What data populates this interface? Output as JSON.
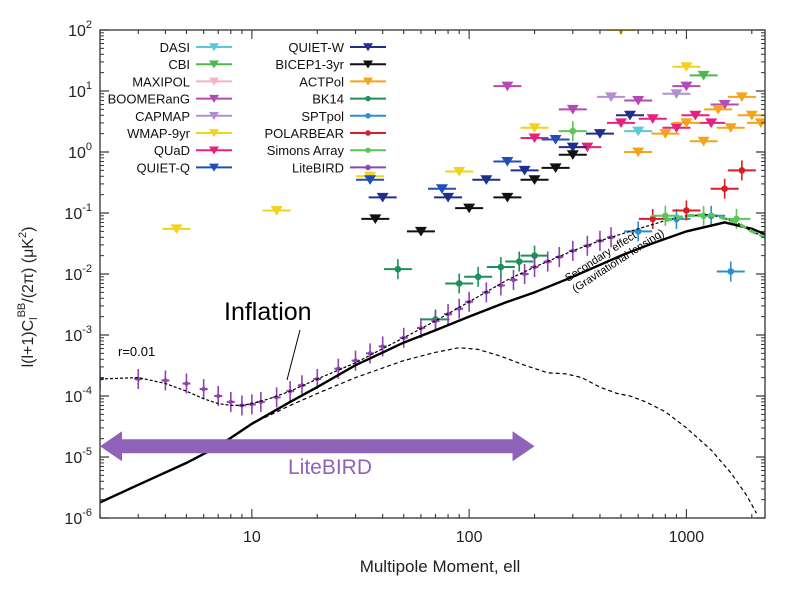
{
  "chart_data": {
    "type": "scatter",
    "xlabel": "Multipole Moment, ell",
    "ylabel_parts": {
      "a": "l(l+1)C",
      "sub": "l",
      "sup": "BB",
      "b": "/(2π) (μK",
      "sup2": "2",
      "c": ")"
    },
    "x_scale": "log",
    "y_scale": "log",
    "xlim": [
      2,
      2300
    ],
    "ylim": [
      1e-06,
      100
    ],
    "x_ticks": [
      {
        "value": 10,
        "label": "10"
      },
      {
        "value": 100,
        "label": "100"
      },
      {
        "value": 1000,
        "label": "1000"
      }
    ],
    "y_ticks": [
      {
        "value": 1e-06,
        "mant": "10",
        "exp": "-6"
      },
      {
        "value": 1e-05,
        "mant": "10",
        "exp": "-5"
      },
      {
        "value": 0.0001,
        "mant": "10",
        "exp": "-4"
      },
      {
        "value": 0.001,
        "mant": "10",
        "exp": "-3"
      },
      {
        "value": 0.01,
        "mant": "10",
        "exp": "-2"
      },
      {
        "value": 0.1,
        "mant": "10",
        "exp": "-1"
      },
      {
        "value": 1,
        "mant": "10",
        "exp": "0"
      },
      {
        "value": 10,
        "mant": "10",
        "exp": "1"
      },
      {
        "value": 100,
        "mant": "10",
        "exp": "2"
      }
    ],
    "annotations": {
      "inflation": "Inflation",
      "r_value": "r=0.01",
      "secondary_1": "Secondary effect",
      "secondary_2": "(Gravitational lensing)",
      "litebird_range": "LiteBIRD"
    },
    "range_arrow": {
      "from": 2,
      "to": 200,
      "y": 1.5e-05,
      "color": "#8e63b8"
    },
    "legend_position": "top-left",
    "legend": [
      {
        "name": "DASI",
        "color": "#5cc9d8",
        "marker": "triangle-down"
      },
      {
        "name": "CBI",
        "color": "#4db84d",
        "marker": "triangle-down"
      },
      {
        "name": "MAXIPOL",
        "color": "#f4b3c2",
        "marker": "triangle-down"
      },
      {
        "name": "BOOMERanG",
        "color": "#b54ab5",
        "marker": "triangle-down"
      },
      {
        "name": "CAPMAP",
        "color": "#b48fd0",
        "marker": "triangle-down"
      },
      {
        "name": "WMAP-9yr",
        "color": "#f2d21e",
        "marker": "triangle-down"
      },
      {
        "name": "QUaD",
        "color": "#e8217a",
        "marker": "triangle-down"
      },
      {
        "name": "QUIET-Q",
        "color": "#1f4fb8",
        "marker": "triangle-down"
      },
      {
        "name": "QUIET-W",
        "color": "#1f2f8f",
        "marker": "triangle-down"
      },
      {
        "name": "BICEP1-3yr",
        "color": "#111111",
        "marker": "triangle-down"
      },
      {
        "name": "ACTPol",
        "color": "#f5a31a",
        "marker": "triangle-down"
      },
      {
        "name": "BK14",
        "color": "#1e8f5a",
        "marker": "circle"
      },
      {
        "name": "SPTpol",
        "color": "#2b8fd1",
        "marker": "circle"
      },
      {
        "name": "POLARBEAR",
        "color": "#d61f26",
        "marker": "circle"
      },
      {
        "name": "Simons Array",
        "color": "#5fc45a",
        "marker": "circle"
      },
      {
        "name": "LiteBIRD",
        "color": "#8e44b0",
        "marker": "circle"
      }
    ],
    "curves": {
      "total": [
        [
          2,
          0.00019
        ],
        [
          3,
          0.0002
        ],
        [
          4,
          0.00016
        ],
        [
          5,
          0.00012
        ],
        [
          6,
          9e-05
        ],
        [
          7,
          7.5e-05
        ],
        [
          8,
          7e-05
        ],
        [
          9,
          7e-05
        ],
        [
          10,
          7.5e-05
        ],
        [
          12,
          9e-05
        ],
        [
          15,
          0.00012
        ],
        [
          20,
          0.00019
        ],
        [
          30,
          0.00035
        ],
        [
          50,
          0.0009
        ],
        [
          70,
          0.0017
        ],
        [
          100,
          0.0035
        ],
        [
          150,
          0.008
        ],
        [
          200,
          0.013
        ],
        [
          300,
          0.024
        ],
        [
          400,
          0.035
        ],
        [
          600,
          0.055
        ],
        [
          800,
          0.075
        ],
        [
          1000,
          0.09
        ],
        [
          1300,
          0.095
        ],
        [
          1700,
          0.07
        ],
        [
          2000,
          0.05
        ],
        [
          2300,
          0.04
        ]
      ],
      "inflation": [
        [
          2,
          1.8e-06
        ],
        [
          3,
          3.5e-06
        ],
        [
          5,
          8e-06
        ],
        [
          7,
          1.5e-05
        ],
        [
          10,
          3.5e-05
        ],
        [
          15,
          8e-05
        ],
        [
          20,
          0.00014
        ],
        [
          30,
          0.00032
        ],
        [
          50,
          0.00075
        ],
        [
          70,
          0.0012
        ],
        [
          100,
          0.002
        ],
        [
          150,
          0.0035
        ],
        [
          200,
          0.005
        ],
        [
          300,
          0.009
        ],
        [
          500,
          0.02
        ],
        [
          700,
          0.032
        ],
        [
          1000,
          0.05
        ],
        [
          1500,
          0.07
        ],
        [
          2000,
          0.055
        ],
        [
          2300,
          0.045
        ]
      ],
      "tensor_only": [
        [
          10,
          3.5e-05
        ],
        [
          15,
          7e-05
        ],
        [
          20,
          0.00011
        ],
        [
          30,
          0.0002
        ],
        [
          50,
          0.00038
        ],
        [
          70,
          0.00052
        ],
        [
          90,
          0.00062
        ],
        [
          110,
          0.00058
        ],
        [
          140,
          0.00045
        ],
        [
          180,
          0.00032
        ],
        [
          230,
          0.00024
        ],
        [
          280,
          0.00023
        ],
        [
          330,
          0.0002
        ],
        [
          400,
          0.00014
        ],
        [
          480,
          0.00011
        ],
        [
          550,
          0.0001
        ],
        [
          650,
          8e-05
        ],
        [
          800,
          5.5e-05
        ],
        [
          1000,
          3e-05
        ],
        [
          1300,
          1.3e-05
        ],
        [
          1600,
          5.5e-06
        ],
        [
          1900,
          2.3e-06
        ],
        [
          2100,
          1.2e-06
        ]
      ]
    },
    "series": [
      {
        "name": "DASI",
        "points": [
          [
            600,
            2.2
          ]
        ]
      },
      {
        "name": "WMAP-9yr",
        "points": [
          [
            4.5,
            0.055
          ],
          [
            13,
            0.11
          ],
          [
            35,
            0.4
          ],
          [
            90,
            0.48
          ],
          [
            200,
            2.5
          ],
          [
            500,
            100
          ],
          [
            1000,
            25
          ]
        ]
      },
      {
        "name": "CBI",
        "points": [
          [
            1200,
            18
          ]
        ]
      },
      {
        "name": "BOOMERanG",
        "points": [
          [
            150,
            12
          ],
          [
            300,
            5
          ],
          [
            600,
            7
          ],
          [
            1000,
            12
          ],
          [
            1500,
            6
          ]
        ]
      },
      {
        "name": "CAPMAP",
        "points": [
          [
            450,
            8
          ],
          [
            900,
            9
          ]
        ]
      },
      {
        "name": "QUaD",
        "points": [
          [
            200,
            1.7
          ],
          [
            350,
            1.2
          ],
          [
            500,
            3
          ],
          [
            700,
            3.5
          ],
          [
            900,
            2.5
          ],
          [
            1100,
            4
          ],
          [
            1300,
            3
          ]
        ]
      },
      {
        "name": "QUIET-Q",
        "points": [
          [
            35,
            0.35
          ],
          [
            75,
            0.25
          ],
          [
            150,
            0.7
          ],
          [
            250,
            1.6
          ]
        ]
      },
      {
        "name": "QUIET-W",
        "points": [
          [
            40,
            0.18
          ],
          [
            80,
            0.18
          ],
          [
            120,
            0.35
          ],
          [
            180,
            0.5
          ],
          [
            300,
            1.2
          ],
          [
            400,
            2
          ],
          [
            550,
            4
          ]
        ]
      },
      {
        "name": "BICEP1-3yr",
        "points": [
          [
            37,
            0.08
          ],
          [
            60,
            0.05
          ],
          [
            100,
            0.12
          ],
          [
            150,
            0.18
          ],
          [
            200,
            0.35
          ],
          [
            250,
            0.55
          ],
          [
            300,
            0.9
          ]
        ]
      },
      {
        "name": "ACTPol",
        "points": [
          [
            600,
            1
          ],
          [
            800,
            2
          ],
          [
            1000,
            3
          ],
          [
            1200,
            1.5
          ],
          [
            1400,
            5
          ],
          [
            1600,
            2.5
          ],
          [
            1800,
            8
          ],
          [
            2000,
            4
          ],
          [
            2200,
            3
          ]
        ]
      },
      {
        "name": "BK14",
        "points": [
          [
            47,
            0.012
          ],
          [
            70,
            0.0018
          ],
          [
            90,
            0.007
          ],
          [
            110,
            0.009
          ],
          [
            140,
            0.013
          ],
          [
            170,
            0.016
          ],
          [
            200,
            0.02
          ]
        ]
      },
      {
        "name": "SPTpol",
        "points": [
          [
            600,
            0.05
          ],
          [
            900,
            0.08
          ],
          [
            1300,
            0.09
          ],
          [
            1600,
            0.011
          ]
        ]
      },
      {
        "name": "POLARBEAR",
        "points": [
          [
            700,
            0.08
          ],
          [
            1000,
            0.11
          ],
          [
            1500,
            0.25
          ],
          [
            1800,
            0.5
          ]
        ]
      },
      {
        "name": "Simons Array",
        "points": [
          [
            300,
            2.2
          ],
          [
            800,
            0.09
          ],
          [
            1200,
            0.09
          ],
          [
            1700,
            0.08
          ]
        ]
      },
      {
        "name": "LiteBIRD",
        "points": [
          [
            2,
            0.00019
          ],
          [
            3,
            0.00019
          ],
          [
            4,
            0.00018
          ],
          [
            5,
            0.00016
          ],
          [
            6,
            0.00013
          ],
          [
            7,
            0.0001
          ],
          [
            8,
            8e-05
          ],
          [
            9,
            7e-05
          ],
          [
            10,
            7.3e-05
          ],
          [
            11,
            8e-05
          ],
          [
            13,
            9.5e-05
          ],
          [
            15,
            0.00012
          ],
          [
            17,
            0.00015
          ],
          [
            20,
            0.00019
          ],
          [
            25,
            0.00028
          ],
          [
            30,
            0.00038
          ],
          [
            35,
            0.0005
          ],
          [
            40,
            0.00065
          ],
          [
            50,
            0.0009
          ],
          [
            60,
            0.0013
          ],
          [
            70,
            0.0017
          ],
          [
            80,
            0.0022
          ],
          [
            90,
            0.0027
          ],
          [
            100,
            0.0035
          ],
          [
            120,
            0.005
          ],
          [
            140,
            0.0065
          ],
          [
            160,
            0.008
          ],
          [
            180,
            0.01
          ],
          [
            200,
            0.013
          ],
          [
            230,
            0.016
          ],
          [
            260,
            0.019
          ],
          [
            300,
            0.024
          ],
          [
            350,
            0.029
          ],
          [
            400,
            0.035
          ],
          [
            450,
            0.04
          ]
        ]
      }
    ]
  }
}
